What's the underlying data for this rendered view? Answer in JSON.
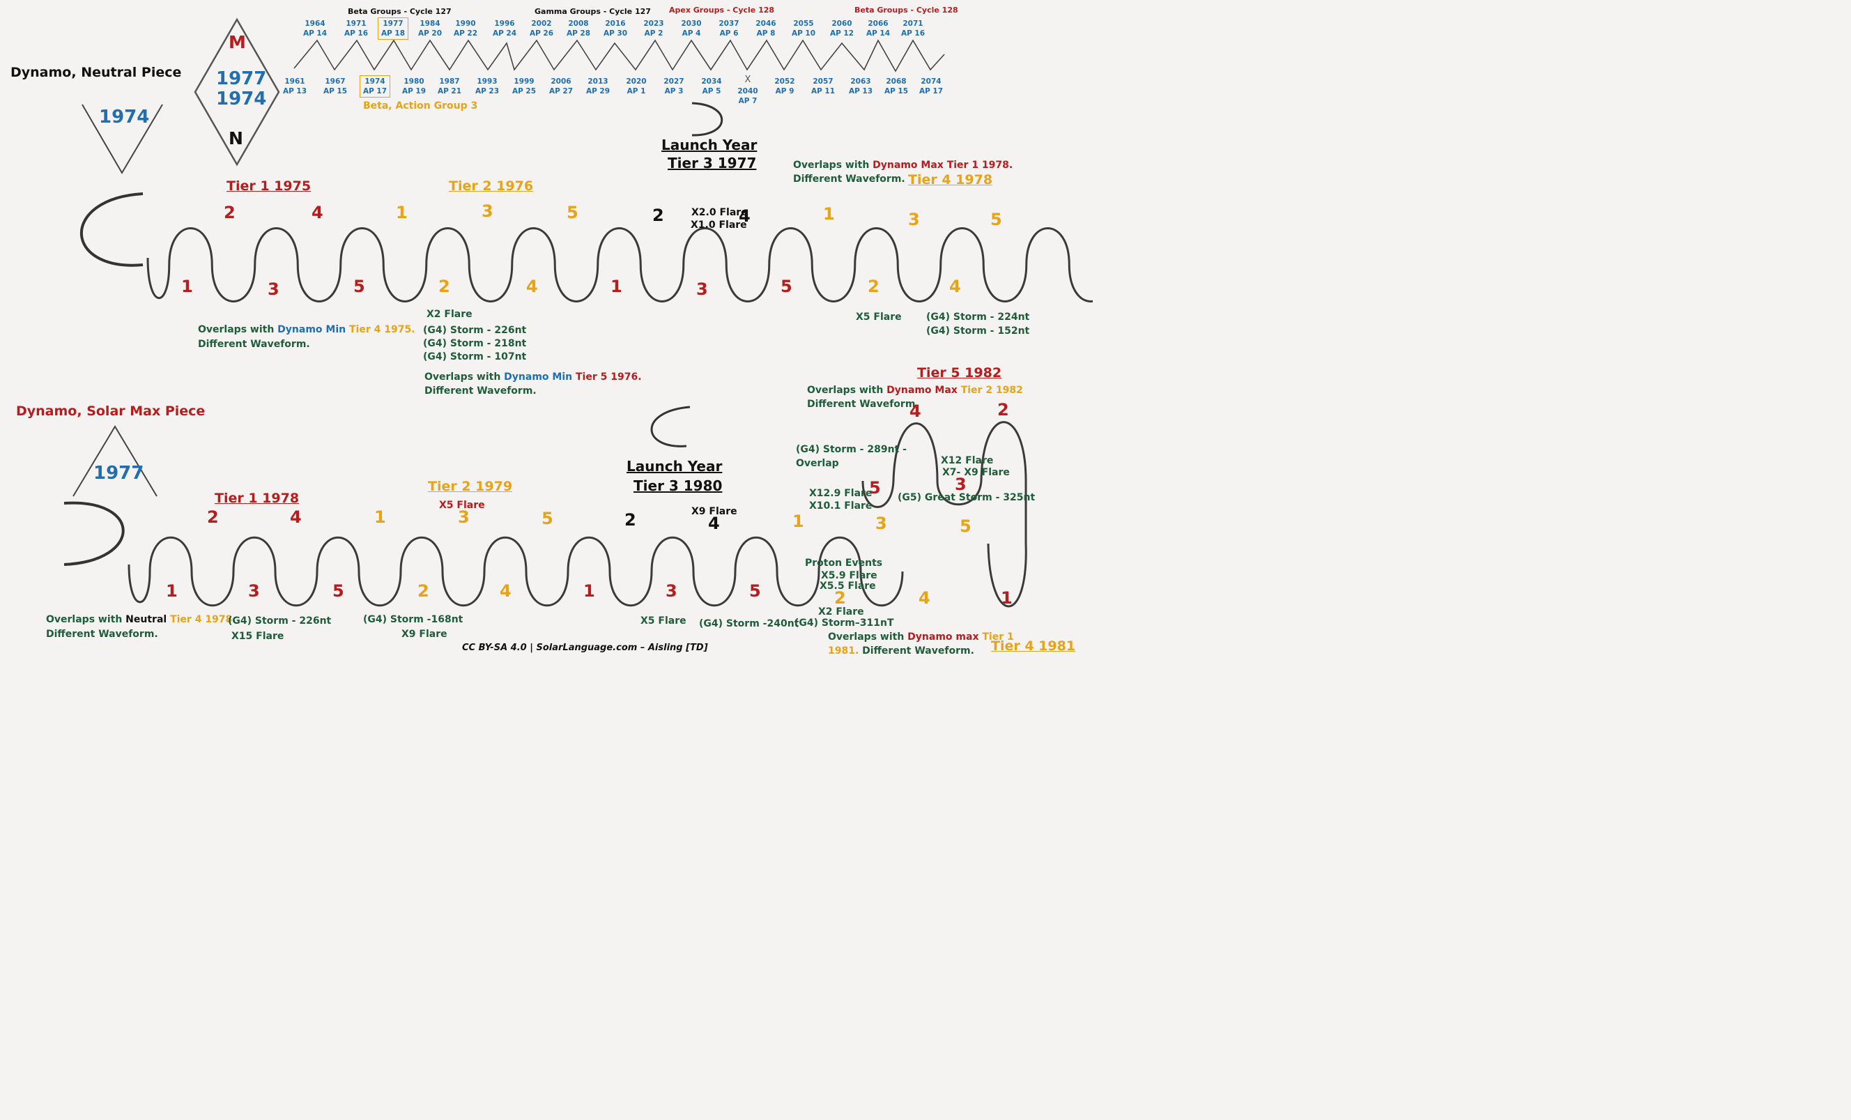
{
  "neutral": {
    "title": "Dynamo, Neutral Piece",
    "symbol_year": "1974",
    "tiers": {
      "t1": "Tier 1 1975",
      "t2": "Tier 2 1976",
      "t4": "Tier 4 1978"
    },
    "launch": {
      "line1": "Launch Year",
      "line2": "Tier 3 1977"
    },
    "numbers": {
      "top": [
        "2",
        "4",
        "1",
        "3",
        "5",
        "2",
        "4",
        "1",
        "3",
        "5"
      ],
      "bottom": [
        "1",
        "3",
        "5",
        "2",
        "4",
        "1",
        "3",
        "5",
        "2",
        "4"
      ]
    },
    "events": {
      "x2_flare": "X2 Flare",
      "storms_1976": [
        "(G4) Storm - 226nt",
        "(G4) Storm - 218nt",
        "(G4) Storm - 107nt"
      ],
      "flares_1977": [
        "X2.0 Flare",
        "X1.0 Flare"
      ],
      "x5_flare": "X5 Flare",
      "storms_1978": [
        "(G4) Storm - 224nt",
        "(G4) Storm - 152nt"
      ]
    },
    "overlaps": {
      "o1": {
        "p1": "Overlaps with ",
        "p2": "Dynamo Min",
        "p3": " Tier 4 1975.",
        "p4": "Different Waveform."
      },
      "o2": {
        "p1": "Overlaps with ",
        "p2": "Dynamo Min",
        "p3": " Tier 5 1976.",
        "p4": "Different Waveform."
      },
      "o3": {
        "p1": "Overlaps with ",
        "p2": "Dynamo Max Tier 1 1978.",
        "p4": "Different Waveform."
      }
    }
  },
  "diamond": {
    "top": "M",
    "year1": "1977",
    "year2": "1974",
    "bottom": "N"
  },
  "groups": {
    "beta127": "Beta Groups - Cycle 127",
    "gamma127": "Gamma Groups - Cycle 127",
    "apex128": "Apex Groups - Cycle 128",
    "beta128": "Beta Groups - Cycle 128",
    "action_group": "Beta, Action Group 3",
    "top_years": [
      [
        "1964",
        "AP 14"
      ],
      [
        "1971",
        "AP 16"
      ],
      [
        "1977",
        "AP 18"
      ],
      [
        "1984",
        "AP 20"
      ],
      [
        "1990",
        "AP 22"
      ],
      [
        "1996",
        "AP 24"
      ],
      [
        "2002",
        "AP 26"
      ],
      [
        "2008",
        "AP 28"
      ],
      [
        "2016",
        "AP 30"
      ],
      [
        "2023",
        "AP 2"
      ],
      [
        "2030",
        "AP 4"
      ],
      [
        "2037",
        "AP 6"
      ],
      [
        "2046",
        "AP 8"
      ],
      [
        "2055",
        "AP 10"
      ],
      [
        "2060",
        "AP 12"
      ],
      [
        "2066",
        "AP 14"
      ],
      [
        "2071",
        "AP 16"
      ]
    ],
    "bottom_years": [
      [
        "1961",
        "AP 13"
      ],
      [
        "1967",
        "AP 15"
      ],
      [
        "1974",
        "AP 17"
      ],
      [
        "1980",
        "AP 19"
      ],
      [
        "1987",
        "AP 21"
      ],
      [
        "1993",
        "AP 23"
      ],
      [
        "1999",
        "AP 25"
      ],
      [
        "2006",
        "AP 27"
      ],
      [
        "2013",
        "AP 29"
      ],
      [
        "2020",
        "AP 1"
      ],
      [
        "2027",
        "AP 3"
      ],
      [
        "2034",
        "AP 5"
      ],
      [
        "X",
        "2040",
        "AP 7"
      ],
      [
        "2052",
        "AP 9"
      ],
      [
        "2057",
        "AP 11"
      ],
      [
        "2063",
        "AP 13"
      ],
      [
        "2068",
        "AP 15"
      ],
      [
        "2074",
        "AP 17"
      ]
    ]
  },
  "solarmax": {
    "title": "Dynamo, Solar Max Piece",
    "symbol_year": "1977",
    "tiers": {
      "t1": "Tier 1 1978",
      "t2": "Tier 2 1979",
      "t5": "Tier 5 1982",
      "t4": "Tier 4 1981"
    },
    "launch": {
      "line1": "Launch Year",
      "line2": "Tier 3 1980"
    },
    "numbers": {
      "top": [
        "2",
        "4",
        "1",
        "3",
        "5",
        "2",
        "4",
        "1",
        "3",
        "5"
      ],
      "bottom": [
        "1",
        "3",
        "5",
        "2",
        "4",
        "1",
        "3",
        "5",
        "2",
        "4",
        "1"
      ],
      "loop": [
        "5",
        "4",
        "3",
        "2"
      ]
    },
    "events": {
      "x5_1979": "X5 Flare",
      "x9_1980": "X9 Flare",
      "storm_226": "(G4) Storm - 226nt",
      "x15": "X15 Flare",
      "storm_168": "(G4) Storm -168nt",
      "x9": "X9 Flare",
      "x5": "X5 Flare",
      "storm_240": "(G4) Storm -240nt",
      "proton": "Proton Events",
      "x59": "X5.9 Flare",
      "x55": "X5.5 Flare",
      "x2": "X2 Flare",
      "storm_311": "(G4) Storm–311nT",
      "storm_289a": "(G4) Storm - 289nt -",
      "storm_289b": "Overlap",
      "x129": "X12.9 Flare",
      "x101": "X10.1 Flare",
      "x12": "X12 Flare",
      "x7x9": "X7- X9 Flare",
      "great": "(G5) Great Storm - 325nt"
    },
    "overlaps": {
      "o1": {
        "p1": "Overlaps with ",
        "p2": "Neutral",
        "p3": " Tier 4 1978.",
        "p4": "Different Waveform."
      },
      "o2": {
        "p1": "Overlaps with ",
        "p2": "Dynamo Max",
        "p3": " Tier 2 1982",
        "p4": "Different Waveform."
      },
      "o3": {
        "p1": "Overlaps with ",
        "p2": "Dynamo max",
        "p3": " Tier 1",
        "p4a": "1981.",
        "p4": " Different Waveform."
      }
    }
  },
  "credit": "CC BY-SA 4.0 | SolarLanguage.com – Aisling [TD]",
  "colors": {
    "red": "#b91c1c",
    "orange": "#e8a317",
    "blue": "#1f6fb2",
    "green": "#1f5c3a",
    "ink": "#333333"
  }
}
